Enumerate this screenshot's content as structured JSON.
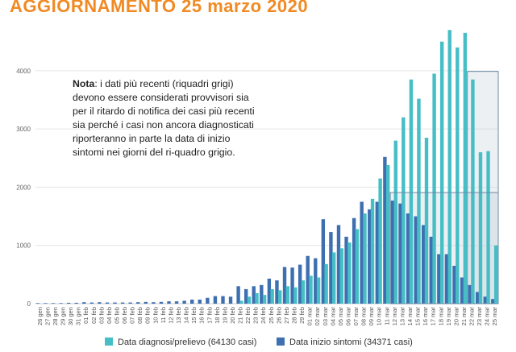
{
  "title": "AGGIORNAMENTO 25 marzo 2020",
  "note": {
    "bold": "Nota",
    "text": ": i dati più recenti (riquadri grigi) devono essere considerati provvisori sia per il ritardo di notifica dei casi più recenti sia perché i casi non ancora diagnosticati riporteranno in parte la data di inizio sintomi nei giorni del ri-quadro grigio."
  },
  "legend": {
    "diagnosi": "Data diagnosi/prelievo (64130 casi)",
    "sintomi": "Data inizio sintomi (34371 casi)"
  },
  "colors": {
    "diagnosi": "#46bec6",
    "sintomi": "#3e6fb0",
    "title": "#f08a24",
    "grey_box": "#b9c8d4"
  },
  "chart_data": {
    "type": "bar",
    "title": "AGGIORNAMENTO 25 marzo 2020",
    "xlabel": "",
    "ylabel": "",
    "ylim": [
      0,
      4800
    ],
    "yticks": [
      0,
      1000,
      2000,
      3000,
      4000
    ],
    "ytick_labels": [
      "0",
      "1000",
      "2000",
      "3000",
      "4000"
    ],
    "categories": [
      "26 gen",
      "27 gen",
      "28 gen",
      "29 gen",
      "30 gen",
      "31 gen",
      "01 feb",
      "02 feb",
      "03 feb",
      "04 feb",
      "05 feb",
      "06 feb",
      "07 feb",
      "08 feb",
      "09 feb",
      "10 feb",
      "11 feb",
      "12 feb",
      "13 feb",
      "14 feb",
      "15 feb",
      "16 feb",
      "17 feb",
      "18 feb",
      "19 feb",
      "20 feb",
      "21 feb",
      "22 feb",
      "23 feb",
      "24 feb",
      "25 feb",
      "26 feb",
      "27 feb",
      "28 feb",
      "29 feb",
      "01 mar",
      "02 mar",
      "03 mar",
      "04 mar",
      "05 mar",
      "06 mar",
      "07 mar",
      "08 mar",
      "09 mar",
      "10 mar",
      "11 mar",
      "12 mar",
      "13 mar",
      "14 mar",
      "15 mar",
      "16 mar",
      "17 mar",
      "18 mar",
      "19 mar",
      "20 mar",
      "21 mar",
      "22 mar",
      "23 mar",
      "24 mar",
      "25 mar"
    ],
    "series": [
      {
        "name": "Data diagnosi/prelievo",
        "values": [
          0,
          0,
          0,
          0,
          0,
          0,
          0,
          0,
          0,
          0,
          0,
          0,
          0,
          0,
          0,
          0,
          0,
          0,
          0,
          0,
          0,
          0,
          0,
          0,
          0,
          0,
          50,
          120,
          180,
          150,
          250,
          230,
          300,
          280,
          400,
          480,
          450,
          680,
          880,
          950,
          1050,
          1280,
          1550,
          1800,
          2150,
          2380,
          2800,
          3200,
          3850,
          3520,
          2850,
          3950,
          4500,
          4700,
          4400,
          4650,
          3850,
          2600,
          2620,
          1000
        ]
      },
      {
        "name": "Data inizio sintomi",
        "values": [
          10,
          10,
          10,
          10,
          15,
          15,
          25,
          20,
          25,
          20,
          20,
          20,
          20,
          25,
          30,
          25,
          30,
          40,
          40,
          50,
          70,
          70,
          100,
          130,
          130,
          120,
          300,
          250,
          300,
          320,
          430,
          400,
          630,
          620,
          670,
          820,
          780,
          1450,
          1230,
          1350,
          1150,
          1470,
          1750,
          1620,
          1750,
          2520,
          1770,
          1720,
          1550,
          1500,
          1350,
          1150,
          850,
          850,
          650,
          450,
          320,
          200,
          120,
          80
        ]
      }
    ],
    "grey_regions": [
      {
        "series": "Data diagnosi/prelievo",
        "from": "22 mar",
        "to": "25 mar"
      },
      {
        "series": "Data inizio sintomi",
        "from": "12 mar",
        "to": "25 mar"
      }
    ]
  }
}
